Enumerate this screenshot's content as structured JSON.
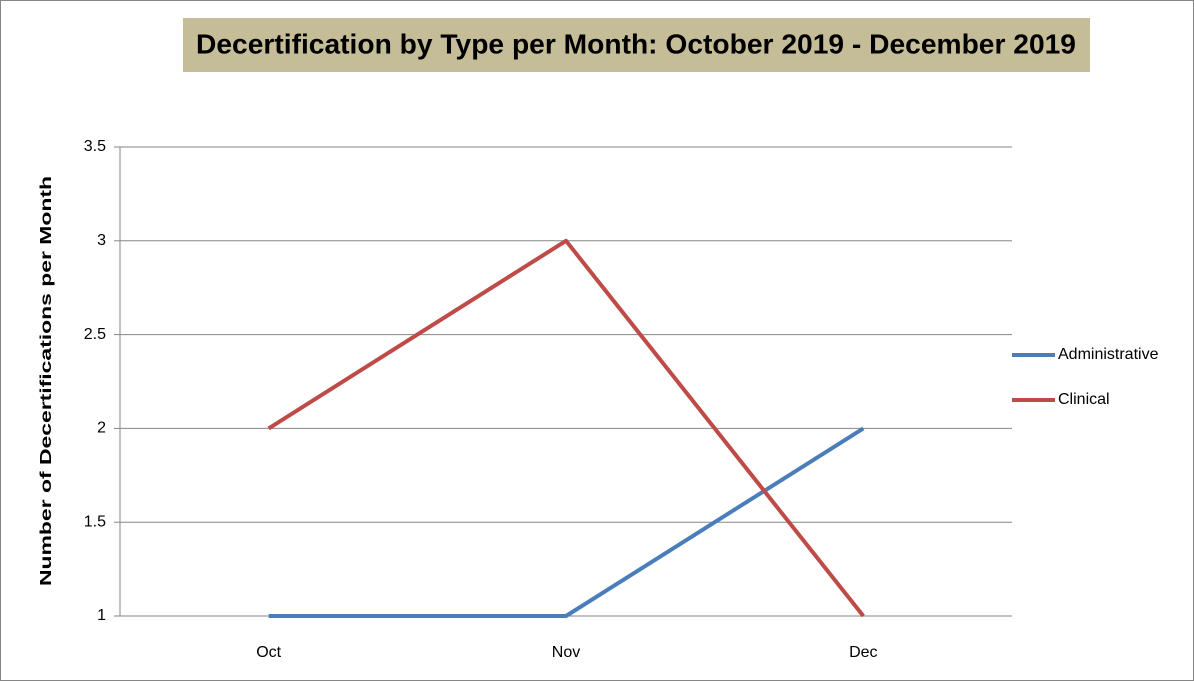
{
  "chart_data": {
    "type": "line",
    "title": "Decertification by Type per Month: October 2019 - December 2019",
    "y_label": "Number of Decertifications per Month",
    "categories": [
      "Oct",
      "Nov",
      "Dec"
    ],
    "series": [
      {
        "name": "Administrative",
        "color": "#4a7ebb",
        "values": [
          1,
          1,
          2
        ]
      },
      {
        "name": "Clinical",
        "color": "#be4b48",
        "values": [
          2,
          3,
          1
        ]
      }
    ],
    "ylim": [
      1,
      3.5
    ],
    "yticks": [
      1,
      1.5,
      2,
      2.5,
      3,
      3.5
    ],
    "grid": true,
    "legend": "right"
  }
}
